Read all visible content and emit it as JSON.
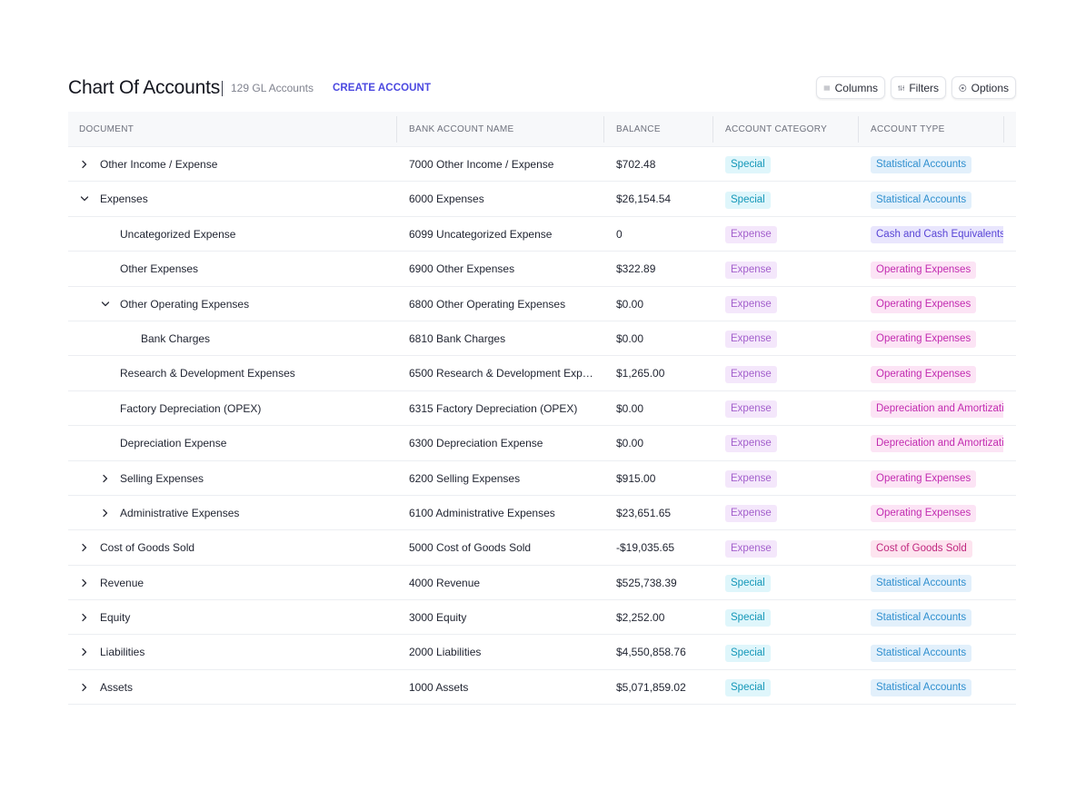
{
  "header": {
    "title": "Chart Of Accounts",
    "count": "129 GL Accounts",
    "create_label": "CREATE ACCOUNT",
    "buttons": {
      "columns": "Columns",
      "filters": "Filters",
      "options": "Options"
    }
  },
  "table": {
    "columns": [
      "DOCUMENT",
      "BANK ACCOUNT NAME",
      "BALANCE",
      "ACCOUNT CATEGORY",
      "ACCOUNT TYPE"
    ],
    "rows": [
      {
        "doc": "Other Income / Expense",
        "bank": "7000 Other Income / Expense",
        "balance": "$702.48",
        "category": "Special",
        "type": "Statistical Accounts",
        "level": 0,
        "toggle": "collapsed"
      },
      {
        "doc": "Expenses",
        "bank": "6000 Expenses",
        "balance": "$26,154.54",
        "category": "Special",
        "type": "Statistical Accounts",
        "level": 0,
        "toggle": "expanded"
      },
      {
        "doc": "Uncategorized Expense",
        "bank": "6099 Uncategorized Expense",
        "balance": "0",
        "category": "Expense",
        "type": "Cash and Cash Equivalents",
        "level": 1,
        "toggle": "none"
      },
      {
        "doc": "Other Expenses",
        "bank": "6900 Other Expenses",
        "balance": "$322.89",
        "category": "Expense",
        "type": "Operating Expenses",
        "level": 1,
        "toggle": "none"
      },
      {
        "doc": "Other Operating Expenses",
        "bank": "6800 Other Operating Expenses",
        "balance": "$0.00",
        "category": "Expense",
        "type": "Operating Expenses",
        "level": 1,
        "toggle": "expanded"
      },
      {
        "doc": "Bank Charges",
        "bank": "6810 Bank Charges",
        "balance": "$0.00",
        "category": "Expense",
        "type": "Operating Expenses",
        "level": 2,
        "toggle": "none"
      },
      {
        "doc": "Research & Development Expenses",
        "bank": "6500 Research & Development Expens...",
        "balance": "$1,265.00",
        "category": "Expense",
        "type": "Operating Expenses",
        "level": 1,
        "toggle": "none"
      },
      {
        "doc": "Factory Depreciation (OPEX)",
        "bank": "6315 Factory Depreciation (OPEX)",
        "balance": "$0.00",
        "category": "Expense",
        "type": "Depreciation and Amortizati",
        "level": 1,
        "toggle": "none"
      },
      {
        "doc": "Depreciation Expense",
        "bank": "6300 Depreciation Expense",
        "balance": "$0.00",
        "category": "Expense",
        "type": "Depreciation and Amortizati",
        "level": 1,
        "toggle": "none"
      },
      {
        "doc": "Selling Expenses",
        "bank": "6200 Selling Expenses",
        "balance": "$915.00",
        "category": "Expense",
        "type": "Operating Expenses",
        "level": 1,
        "toggle": "collapsed"
      },
      {
        "doc": "Administrative Expenses",
        "bank": "6100 Administrative Expenses",
        "balance": "$23,651.65",
        "category": "Expense",
        "type": "Operating Expenses",
        "level": 1,
        "toggle": "collapsed"
      },
      {
        "doc": "Cost of Goods Sold",
        "bank": "5000 Cost of Goods Sold",
        "balance": "-$19,035.65",
        "category": "Expense",
        "type": "Cost of Goods Sold",
        "level": 0,
        "toggle": "collapsed"
      },
      {
        "doc": "Revenue",
        "bank": "4000 Revenue",
        "balance": "$525,738.39",
        "category": "Special",
        "type": "Statistical Accounts",
        "level": 0,
        "toggle": "collapsed"
      },
      {
        "doc": "Equity",
        "bank": "3000 Equity",
        "balance": "$2,252.00",
        "category": "Special",
        "type": "Statistical Accounts",
        "level": 0,
        "toggle": "collapsed"
      },
      {
        "doc": "Liabilities",
        "bank": "2000 Liabilities",
        "balance": "$4,550,858.76",
        "category": "Special",
        "type": "Statistical Accounts",
        "level": 0,
        "toggle": "collapsed"
      },
      {
        "doc": "Assets",
        "bank": "1000 Assets",
        "balance": "$5,071,859.02",
        "category": "Special",
        "type": "Statistical Accounts",
        "level": 0,
        "toggle": "collapsed"
      }
    ]
  },
  "colors": {
    "accent": "#4b48e0",
    "special_badge": "#1497b8",
    "expense_badge": "#a35fcc",
    "statistical_badge": "#2f8fcf",
    "cash_badge": "#5945d6",
    "operating_badge": "#c22bb0",
    "cogs_badge": "#c0267e"
  },
  "icons": {
    "columns": "list-icon",
    "filters": "sliders-icon",
    "options": "circle-dot-icon",
    "collapsed": "chevron-right-icon",
    "expanded": "chevron-down-icon"
  }
}
